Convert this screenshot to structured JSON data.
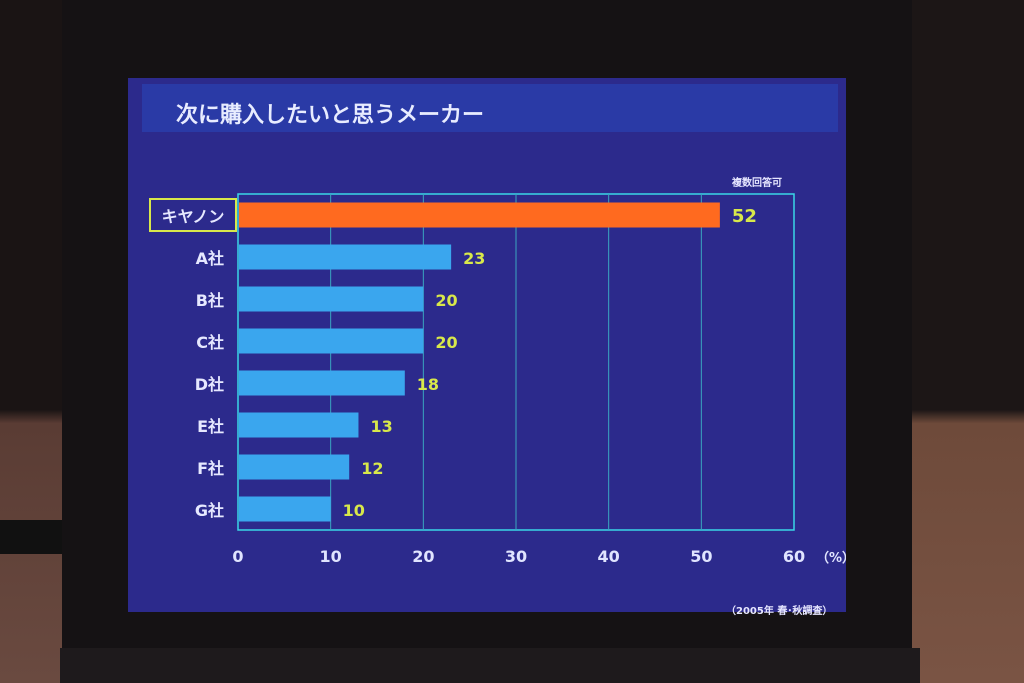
{
  "chart_data": {
    "type": "bar",
    "orientation": "horizontal",
    "title": "次に購入したいと思うメーカー",
    "note": "複数回答可",
    "source": "（2005年 春･秋調査）",
    "x_unit": "（%）",
    "xlim": [
      0,
      60
    ],
    "x_ticks": [
      "0",
      "10",
      "20",
      "30",
      "40",
      "50",
      "60"
    ],
    "grid": true,
    "categories": [
      "キヤノン",
      "A社",
      "B社",
      "C社",
      "D社",
      "E社",
      "F社",
      "G社"
    ],
    "values": [
      52,
      23,
      20,
      20,
      18,
      13,
      12,
      10
    ],
    "highlight_category": "キヤノン",
    "colors": {
      "highlight_bar": "#ff6a1f",
      "bar": "#3aa6ee",
      "value_label": "#d8e84a",
      "axis": "#3ad6e6",
      "grid": "#3aa6c0",
      "category_label": "#e6e8ff",
      "background": "#2c2a8c"
    }
  }
}
